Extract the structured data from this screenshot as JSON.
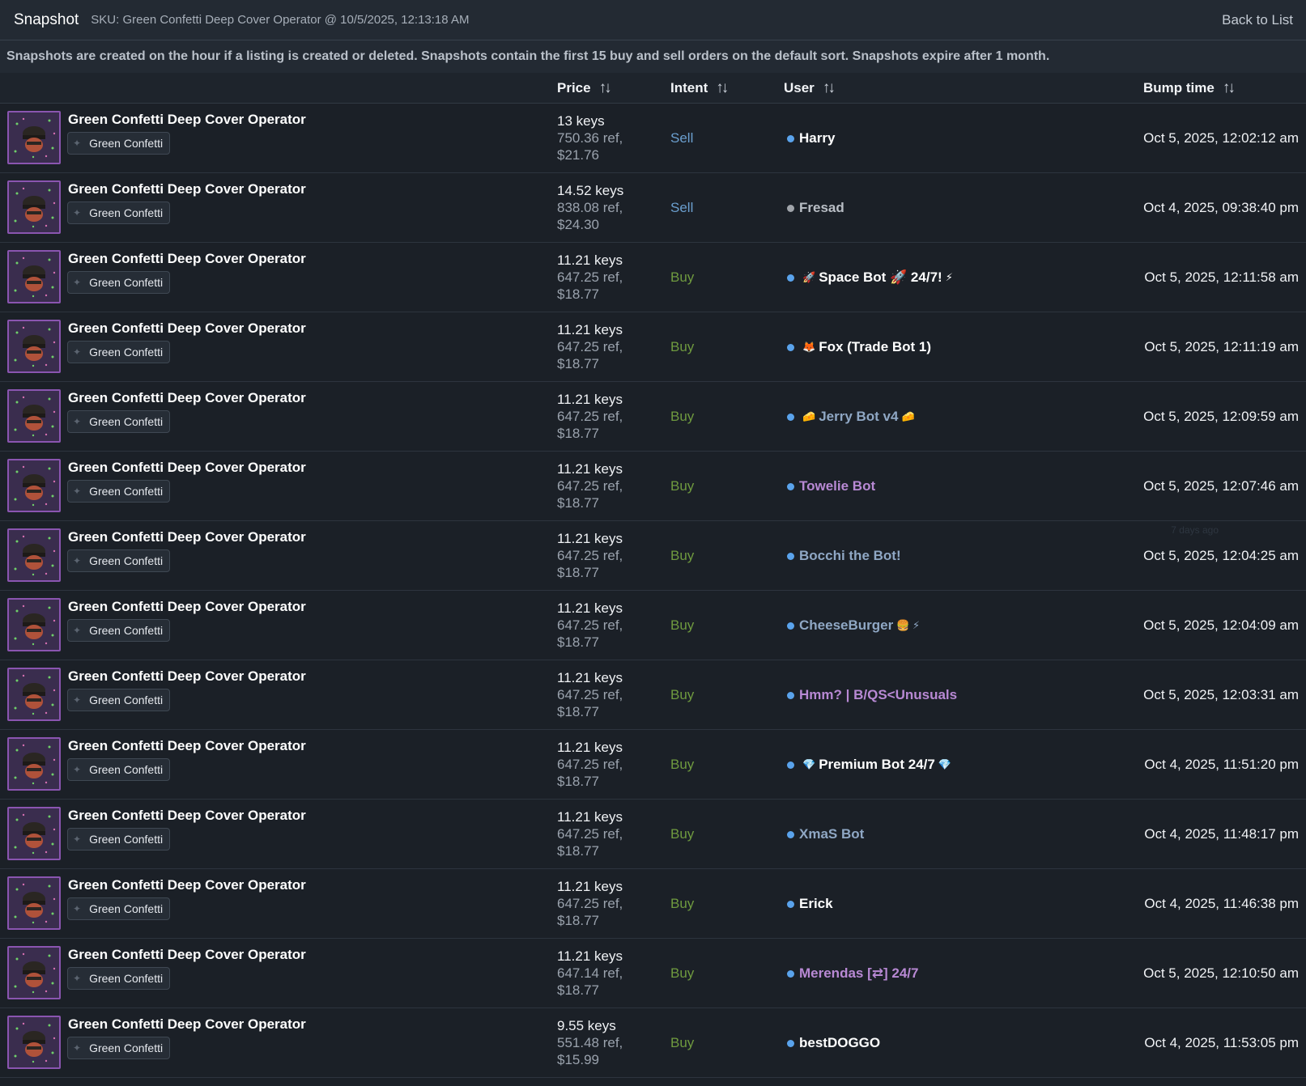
{
  "header": {
    "title": "Snapshot",
    "sku": "SKU: Green Confetti Deep Cover Operator @ 10/5/2025, 12:13:18 AM",
    "back_label": "Back to List"
  },
  "notice": "Snapshots are created on the hour if a listing is created or deleted. Snapshots contain the first 15 buy and sell orders on the default sort. Snapshots expire after 1 month.",
  "columns": {
    "price": "Price",
    "intent": "Intent",
    "user": "User",
    "bump": "Bump time"
  },
  "colors": {
    "buy": "#6f9a3f",
    "sell": "#6b9fcf",
    "online": "#5aa3ec",
    "quality_border": "#8a55b0"
  },
  "rows": [
    {
      "item": "Green Confetti Deep Cover Operator",
      "effect": "Green Confetti",
      "keys": "13 keys",
      "ref": "750.36 ref,",
      "usd": "$21.76",
      "intent": "Sell",
      "user_prefix": "",
      "user": "Harry",
      "user_suffix": "",
      "user_color": "#ffffff",
      "online": true,
      "bump": "Oct 5, 2025, 12:02:12 am"
    },
    {
      "item": "Green Confetti Deep Cover Operator",
      "effect": "Green Confetti",
      "keys": "14.52 keys",
      "ref": "838.08 ref,",
      "usd": "$24.30",
      "intent": "Sell",
      "user_prefix": "",
      "user": "Fresad",
      "user_suffix": "",
      "user_color": "#b9bec5",
      "online": false,
      "bump": "Oct 4, 2025, 09:38:40 pm"
    },
    {
      "item": "Green Confetti Deep Cover Operator",
      "effect": "Green Confetti",
      "keys": "11.21 keys",
      "ref": "647.25 ref,",
      "usd": "$18.77",
      "intent": "Buy",
      "user_prefix": "🚀",
      "user": "Space Bot 🚀 24/7!",
      "user_suffix": "⚡",
      "user_color": "#ffffff",
      "online": true,
      "bump": "Oct 5, 2025, 12:11:58 am"
    },
    {
      "item": "Green Confetti Deep Cover Operator",
      "effect": "Green Confetti",
      "keys": "11.21 keys",
      "ref": "647.25 ref,",
      "usd": "$18.77",
      "intent": "Buy",
      "user_prefix": "🦊",
      "user": "Fox (Trade Bot 1)",
      "user_suffix": "",
      "user_color": "#ffffff",
      "online": true,
      "bump": "Oct 5, 2025, 12:11:19 am"
    },
    {
      "item": "Green Confetti Deep Cover Operator",
      "effect": "Green Confetti",
      "keys": "11.21 keys",
      "ref": "647.25 ref,",
      "usd": "$18.77",
      "intent": "Buy",
      "user_prefix": "🧀",
      "user": "Jerry Bot v4",
      "user_suffix": "🧀",
      "user_color": "#8fa7c4",
      "online": true,
      "bump": "Oct 5, 2025, 12:09:59 am"
    },
    {
      "item": "Green Confetti Deep Cover Operator",
      "effect": "Green Confetti",
      "keys": "11.21 keys",
      "ref": "647.25 ref,",
      "usd": "$18.77",
      "intent": "Buy",
      "user_prefix": "",
      "user": "Towelie Bot",
      "user_suffix": "",
      "user_color": "#b889d4",
      "online": true,
      "bump": "Oct 5, 2025, 12:07:46 am"
    },
    {
      "item": "Green Confetti Deep Cover Operator",
      "effect": "Green Confetti",
      "keys": "11.21 keys",
      "ref": "647.25 ref,",
      "usd": "$18.77",
      "intent": "Buy",
      "user_prefix": "",
      "user": "Bocchi the Bot!",
      "user_suffix": "",
      "user_color": "#8fa7c4",
      "online": true,
      "bump": "Oct 5, 2025, 12:04:25 am",
      "ghost": "7 days ago"
    },
    {
      "item": "Green Confetti Deep Cover Operator",
      "effect": "Green Confetti",
      "keys": "11.21 keys",
      "ref": "647.25 ref,",
      "usd": "$18.77",
      "intent": "Buy",
      "user_prefix": "",
      "user": "CheeseBurger",
      "user_suffix": "🍔 ⚡",
      "user_color": "#8fa7c4",
      "online": true,
      "bump": "Oct 5, 2025, 12:04:09 am"
    },
    {
      "item": "Green Confetti Deep Cover Operator",
      "effect": "Green Confetti",
      "keys": "11.21 keys",
      "ref": "647.25 ref,",
      "usd": "$18.77",
      "intent": "Buy",
      "user_prefix": "",
      "user": "Hmm? | B/QS<Unusuals",
      "user_suffix": "",
      "user_color": "#b889d4",
      "online": true,
      "bump": "Oct 5, 2025, 12:03:31 am"
    },
    {
      "item": "Green Confetti Deep Cover Operator",
      "effect": "Green Confetti",
      "keys": "11.21 keys",
      "ref": "647.25 ref,",
      "usd": "$18.77",
      "intent": "Buy",
      "user_prefix": "💎",
      "user": "Premium Bot 24/7",
      "user_suffix": "💎",
      "user_color": "#ffffff",
      "online": true,
      "bump": "Oct 4, 2025, 11:51:20 pm"
    },
    {
      "item": "Green Confetti Deep Cover Operator",
      "effect": "Green Confetti",
      "keys": "11.21 keys",
      "ref": "647.25 ref,",
      "usd": "$18.77",
      "intent": "Buy",
      "user_prefix": "",
      "user": "XmaS Bot",
      "user_suffix": "",
      "user_color": "#8fa7c4",
      "online": true,
      "bump": "Oct 4, 2025, 11:48:17 pm"
    },
    {
      "item": "Green Confetti Deep Cover Operator",
      "effect": "Green Confetti",
      "keys": "11.21 keys",
      "ref": "647.25 ref,",
      "usd": "$18.77",
      "intent": "Buy",
      "user_prefix": "",
      "user": "Erick",
      "user_suffix": "",
      "user_color": "#ffffff",
      "online": true,
      "bump": "Oct 4, 2025, 11:46:38 pm"
    },
    {
      "item": "Green Confetti Deep Cover Operator",
      "effect": "Green Confetti",
      "keys": "11.21 keys",
      "ref": "647.14 ref,",
      "usd": "$18.77",
      "intent": "Buy",
      "user_prefix": "",
      "user": "Merendas [⇄] 24/7",
      "user_suffix": "",
      "user_color": "#b889d4",
      "online": true,
      "bump": "Oct 5, 2025, 12:10:50 am"
    },
    {
      "item": "Green Confetti Deep Cover Operator",
      "effect": "Green Confetti",
      "keys": "9.55 keys",
      "ref": "551.48 ref,",
      "usd": "$15.99",
      "intent": "Buy",
      "user_prefix": "",
      "user": "bestDOGGO",
      "user_suffix": "",
      "user_color": "#ffffff",
      "online": true,
      "bump": "Oct 4, 2025, 11:53:05 pm"
    }
  ]
}
